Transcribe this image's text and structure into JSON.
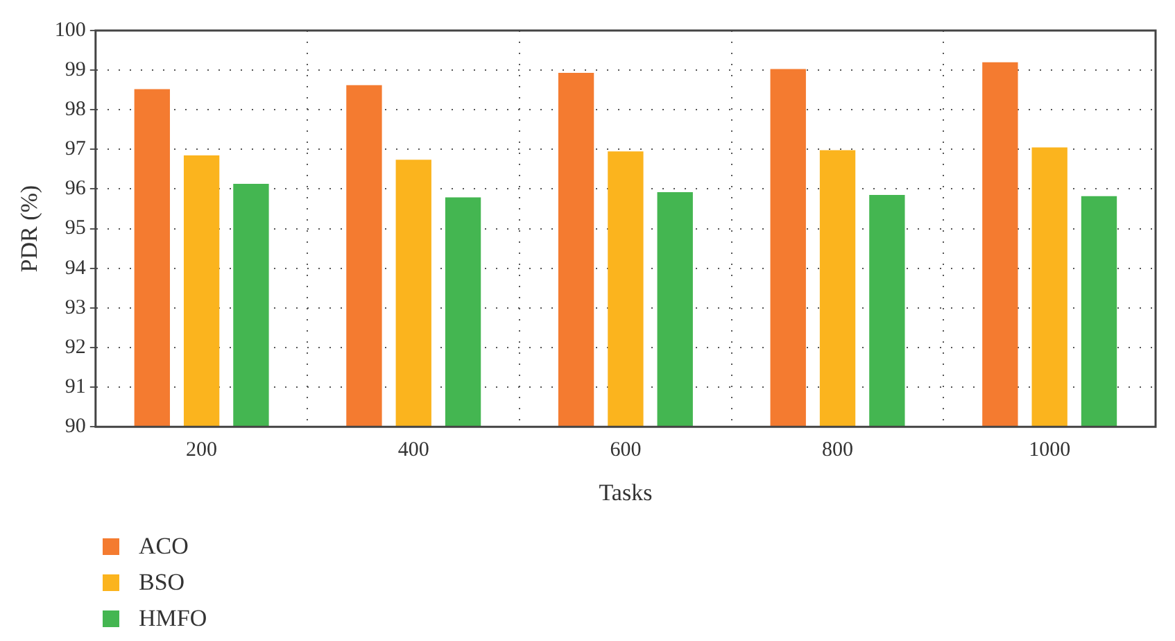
{
  "chart_data": {
    "type": "bar",
    "xlabel": "Tasks",
    "ylabel": "PDR (%)",
    "categories": [
      "200",
      "400",
      "600",
      "800",
      "1000"
    ],
    "series": [
      {
        "name": "ACO",
        "color": "#f47b30",
        "values": [
          98.52,
          98.62,
          98.93,
          99.03,
          99.2
        ]
      },
      {
        "name": "BSO",
        "color": "#fbb41e",
        "values": [
          96.85,
          96.74,
          96.95,
          96.98,
          97.05
        ]
      },
      {
        "name": "HMFO",
        "color": "#44b651",
        "values": [
          96.13,
          95.79,
          95.92,
          95.85,
          95.82
        ]
      }
    ],
    "ylim": [
      90,
      100
    ],
    "yticks": [
      90,
      91,
      92,
      93,
      94,
      95,
      96,
      97,
      98,
      99,
      100
    ],
    "grid": true,
    "legend": "bottom left"
  }
}
